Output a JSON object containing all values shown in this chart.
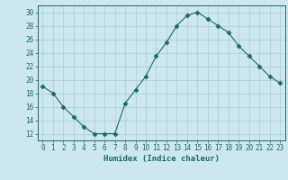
{
  "x": [
    0,
    1,
    2,
    3,
    4,
    5,
    6,
    7,
    8,
    9,
    10,
    11,
    12,
    13,
    14,
    15,
    16,
    17,
    18,
    19,
    20,
    21,
    22,
    23
  ],
  "y": [
    19.0,
    18.0,
    16.0,
    14.5,
    13.0,
    12.0,
    12.0,
    12.0,
    16.5,
    18.5,
    20.5,
    23.5,
    25.5,
    28.0,
    29.5,
    30.0,
    29.0,
    28.0,
    27.0,
    25.0,
    23.5,
    22.0,
    20.5,
    19.5
  ],
  "line_color": "#1a6b5e",
  "marker": "D",
  "marker_size": 2.5,
  "bg_color": "#cce8ee",
  "grid_color": "#aacccc",
  "xlabel": "Humidex (Indice chaleur)",
  "xlim": [
    -0.5,
    23.5
  ],
  "ylim": [
    11,
    31
  ],
  "yticks": [
    12,
    14,
    16,
    18,
    20,
    22,
    24,
    26,
    28,
    30
  ],
  "xtick_labels": [
    "0",
    "1",
    "2",
    "3",
    "4",
    "5",
    "6",
    "7",
    "8",
    "9",
    "10",
    "11",
    "12",
    "13",
    "14",
    "15",
    "16",
    "17",
    "18",
    "19",
    "20",
    "21",
    "22",
    "23"
  ],
  "label_fontsize": 6.5,
  "tick_fontsize": 5.5
}
